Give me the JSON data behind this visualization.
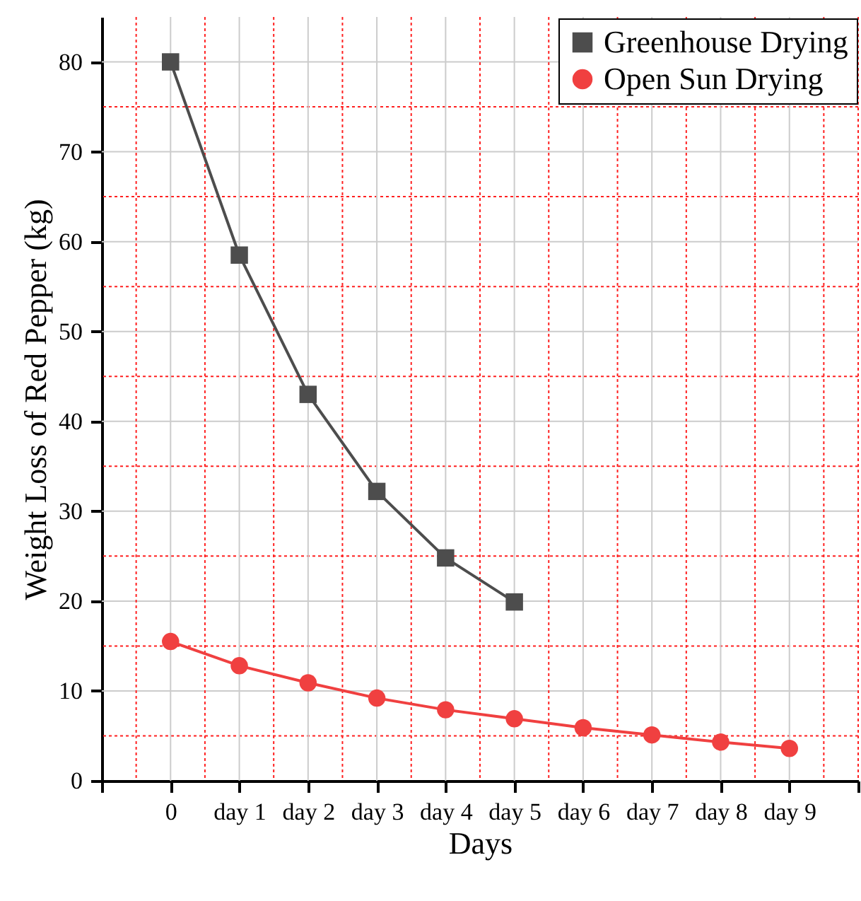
{
  "chart_data": {
    "type": "line",
    "xlabel": "Days",
    "ylabel": "Weight Loss of Red Pepper (kg)",
    "categories": [
      null,
      "0",
      "day 1",
      "day 2",
      "day 3",
      "day 4",
      "day 5",
      "day 6",
      "day 7",
      "day 8",
      "day 9",
      null
    ],
    "series": [
      {
        "name": "Greenhouse Drying",
        "color": "#4d4d4d",
        "marker": "square",
        "values": [
          null,
          80,
          58.5,
          43,
          32.2,
          24.8,
          19.9,
          null,
          null,
          null,
          null,
          null
        ]
      },
      {
        "name": "Open Sun Drying",
        "color": "#f04040",
        "marker": "circle",
        "values": [
          null,
          15.5,
          12.8,
          10.9,
          9.2,
          7.9,
          6.9,
          5.9,
          5.1,
          4.3,
          3.6,
          null
        ]
      }
    ],
    "ylim": [
      0,
      85
    ],
    "yticks": [
      0,
      {
        "value": 5,
        "label": null
      },
      10,
      {
        "value": 15,
        "label": null
      },
      20,
      {
        "value": 25,
        "label": null
      },
      30,
      {
        "value": 35,
        "label": null
      },
      40,
      {
        "value": 45,
        "label": null
      },
      50,
      {
        "value": 55,
        "label": null
      },
      60,
      {
        "value": 65,
        "label": null
      },
      70,
      {
        "value": 75,
        "label": null
      },
      80
    ],
    "grid": true,
    "legend": "top right",
    "line_style": "solid"
  }
}
